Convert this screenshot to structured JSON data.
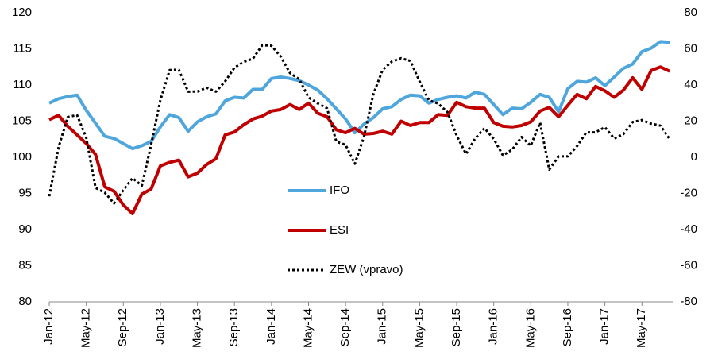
{
  "chart_data": {
    "type": "line",
    "categories": [
      "Jan-12",
      null,
      null,
      null,
      "May-12",
      null,
      null,
      null,
      "Sep-12",
      null,
      null,
      null,
      "Jan-13",
      null,
      null,
      null,
      "May-13",
      null,
      null,
      null,
      "Sep-13",
      null,
      null,
      null,
      "Jan-14",
      null,
      null,
      null,
      "May-14",
      null,
      null,
      null,
      "Sep-14",
      null,
      null,
      null,
      "Jan-15",
      null,
      null,
      null,
      "May-15",
      null,
      null,
      null,
      "Sep-15",
      null,
      null,
      null,
      "Jan-16",
      null,
      null,
      null,
      "May-16",
      null,
      null,
      null,
      "Sep-16",
      null,
      null,
      null,
      "Jan-17",
      null,
      null,
      null,
      "May-17",
      null,
      null,
      null
    ],
    "series": [
      {
        "name": "IFO",
        "color": "#4ea6dc",
        "values": [
          107.5,
          108.1,
          108.4,
          108.6,
          106.5,
          104.7,
          102.9,
          102.6,
          101.9,
          101.2,
          101.6,
          102.2,
          104.2,
          105.9,
          105.5,
          103.6,
          104.9,
          105.6,
          106.0,
          107.8,
          108.3,
          108.2,
          109.4,
          109.4,
          110.9,
          111.1,
          110.9,
          110.6,
          110.0,
          109.3,
          108.1,
          106.7,
          105.3,
          103.4,
          104.6,
          105.5,
          106.7,
          107.0,
          108.0,
          108.6,
          108.5,
          107.5,
          108.0,
          108.3,
          108.5,
          108.2,
          109.0,
          108.7,
          107.3,
          105.9,
          106.8,
          106.7,
          107.6,
          108.7,
          108.3,
          106.3,
          109.5,
          110.5,
          110.4,
          111.0,
          109.9,
          111.1,
          112.3,
          112.9,
          114.6,
          115.1,
          116.0,
          115.9
        ]
      },
      {
        "name": "ESI",
        "color": "#c00000",
        "values": [
          105.2,
          105.8,
          104.3,
          103.1,
          101.9,
          100.4,
          95.9,
          95.3,
          93.4,
          92.2,
          94.9,
          95.6,
          98.8,
          99.3,
          99.6,
          97.3,
          97.8,
          99.0,
          99.8,
          103.1,
          103.5,
          104.5,
          105.3,
          105.7,
          106.4,
          106.6,
          107.3,
          106.6,
          107.5,
          106.1,
          105.6,
          103.8,
          103.4,
          104.0,
          103.2,
          103.3,
          103.6,
          103.2,
          105.0,
          104.4,
          104.8,
          104.8,
          105.9,
          105.8,
          107.6,
          107.0,
          106.8,
          106.8,
          104.8,
          104.3,
          104.2,
          104.4,
          104.9,
          106.4,
          106.9,
          105.6,
          107.2,
          108.7,
          108.1,
          109.8,
          109.2,
          108.3,
          109.3,
          111.0,
          109.4,
          112.0,
          112.5,
          111.9
        ]
      },
      {
        "name": "ZEW (vpravo)",
        "color": "#000000",
        "axis": "y2",
        "line_style": "dotted",
        "values": [
          -21.6,
          5.4,
          22.3,
          23.4,
          10.8,
          -16.9,
          -19.6,
          -25.5,
          -18.2,
          -11.5,
          -15.7,
          6.9,
          31.5,
          48.2,
          48.5,
          36.3,
          36.4,
          38.5,
          36.3,
          42.0,
          49.6,
          52.8,
          54.6,
          62.0,
          61.7,
          55.7,
          46.6,
          43.2,
          33.1,
          29.8,
          27.1,
          8.6,
          6.9,
          -3.6,
          11.5,
          34.9,
          48.4,
          53.0,
          54.8,
          53.3,
          41.9,
          31.5,
          29.7,
          25.0,
          12.1,
          1.9,
          10.4,
          16.1,
          10.2,
          1.0,
          4.3,
          11.2,
          6.4,
          19.2,
          -6.8,
          0.5,
          0.5,
          6.2,
          13.8,
          13.8,
          16.6,
          10.4,
          12.8,
          19.5,
          20.6,
          18.6,
          17.5,
          10.0
        ]
      }
    ],
    "ylim": [
      80,
      120
    ],
    "yticks": [
      80,
      85,
      90,
      95,
      100,
      105,
      110,
      115,
      120
    ],
    "y2lim": [
      -80,
      80
    ],
    "y2ticks": [
      -80,
      -60,
      -40,
      -20,
      0,
      20,
      40,
      60,
      80
    ],
    "grid": false
  }
}
